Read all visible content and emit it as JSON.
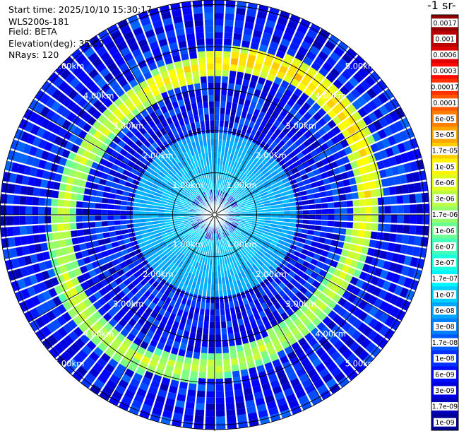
{
  "info": {
    "start_time": "Start time: 2025/10/10 15:30:17",
    "instrument": "WLS200s-181",
    "field": "Field: BETA",
    "elevation": "Elevation(deg): 35.00",
    "nrays": "NRays: 120"
  },
  "colorbar_title": "-1 sr-",
  "colors": {
    "colormap": [
      "#00007f",
      "#0000ff",
      "#007fff",
      "#00ffff",
      "#7fff7f",
      "#ffff00",
      "#ff7f00",
      "#ff0000",
      "#7f0000"
    ],
    "grid": "#000000",
    "range_label": "#ffffff"
  },
  "chart_data": {
    "type": "heatmap",
    "subtype": "polar-ppi",
    "n_rays": 120,
    "elevation_deg": 35.0,
    "range_rings_km": [
      1.0,
      2.0,
      3.0,
      4.0,
      5.0
    ],
    "ring_labels": [
      "1.00km",
      "2.00km",
      "3.00km",
      "4.00km",
      "5.00km"
    ],
    "colorbar": {
      "scale": "log",
      "range": [
        1e-09,
        0.0017
      ],
      "tick_labels": [
        "0.0017",
        "0.001",
        "0.0006",
        "0.0003",
        "0.00017",
        "0.0001",
        "6e-05",
        "3e-05",
        "1.7e-05",
        "1e-05",
        "6e-06",
        "3e-06",
        "1.7e-06",
        "1e-06",
        "6e-07",
        "3e-07",
        "1.7e-07",
        "1e-07",
        "6e-08",
        "3e-08",
        "1.7e-08",
        "1e-08",
        "6e-09",
        "3e-09",
        "1.7e-09",
        "1e-09"
      ],
      "tick_values": [
        0.0017,
        0.001,
        0.0006,
        0.0003,
        0.00017,
        0.0001,
        6e-05,
        3e-05,
        1.7e-05,
        1e-05,
        6e-06,
        3e-06,
        1.7e-06,
        1e-06,
        6e-07,
        3e-07,
        1.7e-07,
        1e-07,
        6e-08,
        3e-08,
        1.7e-08,
        1e-08,
        6e-09,
        3e-09,
        1.7e-09,
        1e-09
      ]
    },
    "background_range_log10": [
      -8.7,
      -7.6
    ],
    "aerosol_ring": {
      "radius_km_min": 3.3,
      "radius_km_max": 3.9,
      "value_log10": -5.0,
      "strongest_sector": "north and east"
    },
    "near_field": {
      "radius_km": 2.0,
      "value_log10": -7.0
    },
    "grid": true
  }
}
